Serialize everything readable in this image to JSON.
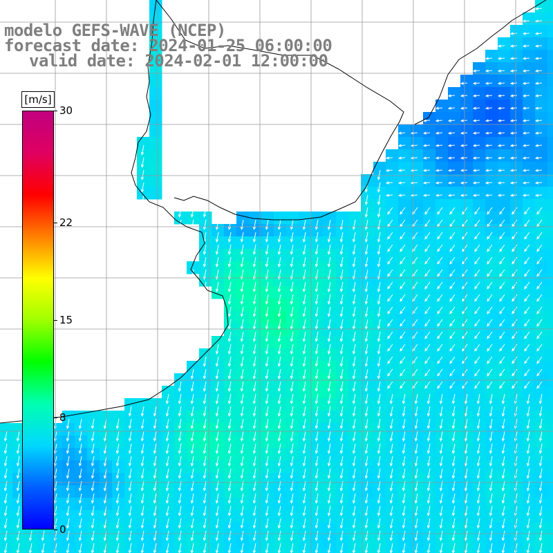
{
  "titles": {
    "line1": "modelo GEFS-WAVE (NCEP)",
    "line2": "forecast date: 2024-01-25 06:00:00",
    "line3": "valid date: 2024-02-01 12:00:00"
  },
  "colorbar": {
    "units": "[m/s]",
    "ticks": [
      "30",
      "22",
      "15",
      "8",
      "0"
    ],
    "tick_values": [
      30,
      22,
      15,
      8,
      0
    ],
    "range": [
      0,
      30
    ],
    "stops": [
      "#0000ff",
      "#0060ff",
      "#00d8ff",
      "#00ffb0",
      "#00ff00",
      "#a0ff00",
      "#ffff00",
      "#ff8000",
      "#ff0000",
      "#e00060",
      "#c0007f"
    ]
  },
  "map": {
    "field": "wind speed with direction vectors",
    "speed_range_shown_mps": [
      3,
      11
    ],
    "prevailing_direction": "south-southwest (vectors pointing down-left)",
    "ocean_color_low": "#0050f0",
    "ocean_color_mid": "#00c8ff",
    "ocean_color_high": "#00e8a0",
    "land_color": "#ffffff",
    "coastline_color": "#000000",
    "graticule_color": "#999999"
  }
}
